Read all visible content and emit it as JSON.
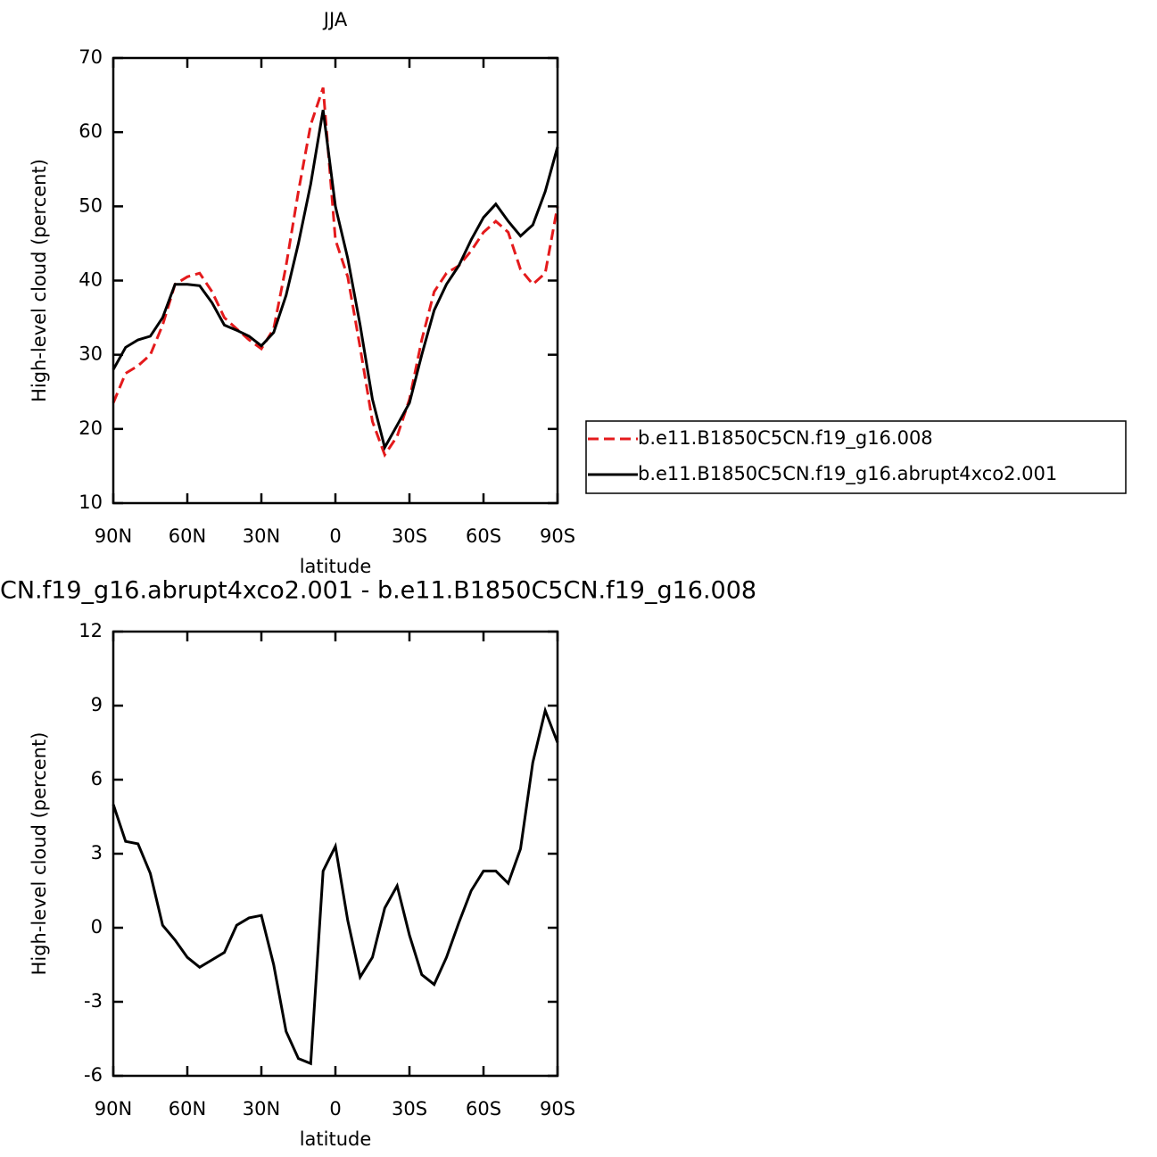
{
  "chart_data": [
    {
      "type": "line",
      "title": "JJA",
      "xlabel": "latitude",
      "ylabel": "High-level cloud (percent)",
      "x": [
        90,
        85,
        80,
        75,
        70,
        65,
        60,
        55,
        50,
        45,
        40,
        35,
        30,
        25,
        20,
        15,
        10,
        5,
        0,
        -5,
        -10,
        -15,
        -20,
        -25,
        -30,
        -35,
        -40,
        -45,
        -50,
        -55,
        -60,
        -65,
        -70,
        -75,
        -80,
        -85,
        -90
      ],
      "series": [
        {
          "name": "b.e11.B1850C5CN.f19_g16.008",
          "color": "#e41a1c",
          "line_style": "dashed",
          "values": [
            23.5,
            27.5,
            28.5,
            30,
            34,
            39.5,
            40.5,
            41,
            38.5,
            35,
            33.5,
            32,
            30.8,
            33.5,
            42,
            52,
            61,
            66,
            45.5,
            40.5,
            31,
            21,
            16.5,
            19,
            24,
            32,
            38.5,
            41,
            42,
            44,
            46.5,
            48,
            46.5,
            41.5,
            39.5,
            41,
            50
          ]
        },
        {
          "name": "b.e11.B1850C5CN.f19_g16.abrupt4xco2.001",
          "color": "#000000",
          "line_style": "solid",
          "values": [
            28,
            31,
            32,
            32.5,
            35,
            39.5,
            39.5,
            39.3,
            37,
            34,
            33.3,
            32.5,
            31.2,
            33,
            38,
            45,
            53,
            63,
            50,
            43,
            34,
            24,
            17.5,
            20.5,
            23.5,
            30,
            36,
            39.5,
            42,
            45.5,
            48.5,
            50.3,
            48,
            46,
            47.5,
            52,
            58
          ]
        }
      ],
      "xlim": [
        90,
        -90
      ],
      "xticks": [
        {
          "value": 90,
          "label": "90N"
        },
        {
          "value": 60,
          "label": "60N"
        },
        {
          "value": 30,
          "label": "30N"
        },
        0,
        {
          "value": -30,
          "label": "30S"
        },
        {
          "value": -60,
          "label": "60S"
        },
        {
          "value": -90,
          "label": "90S"
        }
      ],
      "ylim": [
        10,
        70
      ],
      "yticks": [
        10,
        20,
        30,
        40,
        50,
        60,
        70
      ],
      "legend": "right"
    },
    {
      "type": "line",
      "title": "CN.f19_g16.abrupt4xco2.001 - b.e11.B1850C5CN.f19_g16.008",
      "xlabel": "latitude",
      "ylabel": "High-level cloud (percent)",
      "x": [
        90,
        85,
        80,
        75,
        70,
        65,
        60,
        55,
        50,
        45,
        40,
        35,
        30,
        25,
        20,
        15,
        10,
        5,
        0,
        -5,
        -10,
        -15,
        -20,
        -25,
        -30,
        -35,
        -40,
        -45,
        -50,
        -55,
        -60,
        -65,
        -70,
        -75,
        -80,
        -85,
        -90
      ],
      "series": [
        {
          "color": "#000000",
          "line_style": "solid",
          "values": [
            5,
            3.5,
            3.4,
            2.2,
            0.1,
            -0.5,
            -1.2,
            -1.6,
            -1.3,
            -1.0,
            0.1,
            0.4,
            0.5,
            -1.5,
            -4.2,
            -5.3,
            -5.5,
            2.3,
            3.3,
            0.3,
            -2.0,
            -1.2,
            0.8,
            1.7,
            -0.3,
            -1.9,
            -2.3,
            -1.2,
            0.2,
            1.5,
            2.3,
            2.3,
            1.8,
            3.2,
            6.7,
            8.8,
            7.5
          ]
        }
      ],
      "xlim": [
        90,
        -90
      ],
      "xticks": [
        {
          "value": 90,
          "label": "90N"
        },
        {
          "value": 60,
          "label": "60N"
        },
        {
          "value": 30,
          "label": "30N"
        },
        0,
        {
          "value": -30,
          "label": "30S"
        },
        {
          "value": -60,
          "label": "60S"
        },
        {
          "value": -90,
          "label": "90S"
        }
      ],
      "ylim": [
        -6,
        12
      ],
      "yticks": [
        -6,
        -3,
        0,
        3,
        6,
        9,
        12
      ]
    }
  ]
}
